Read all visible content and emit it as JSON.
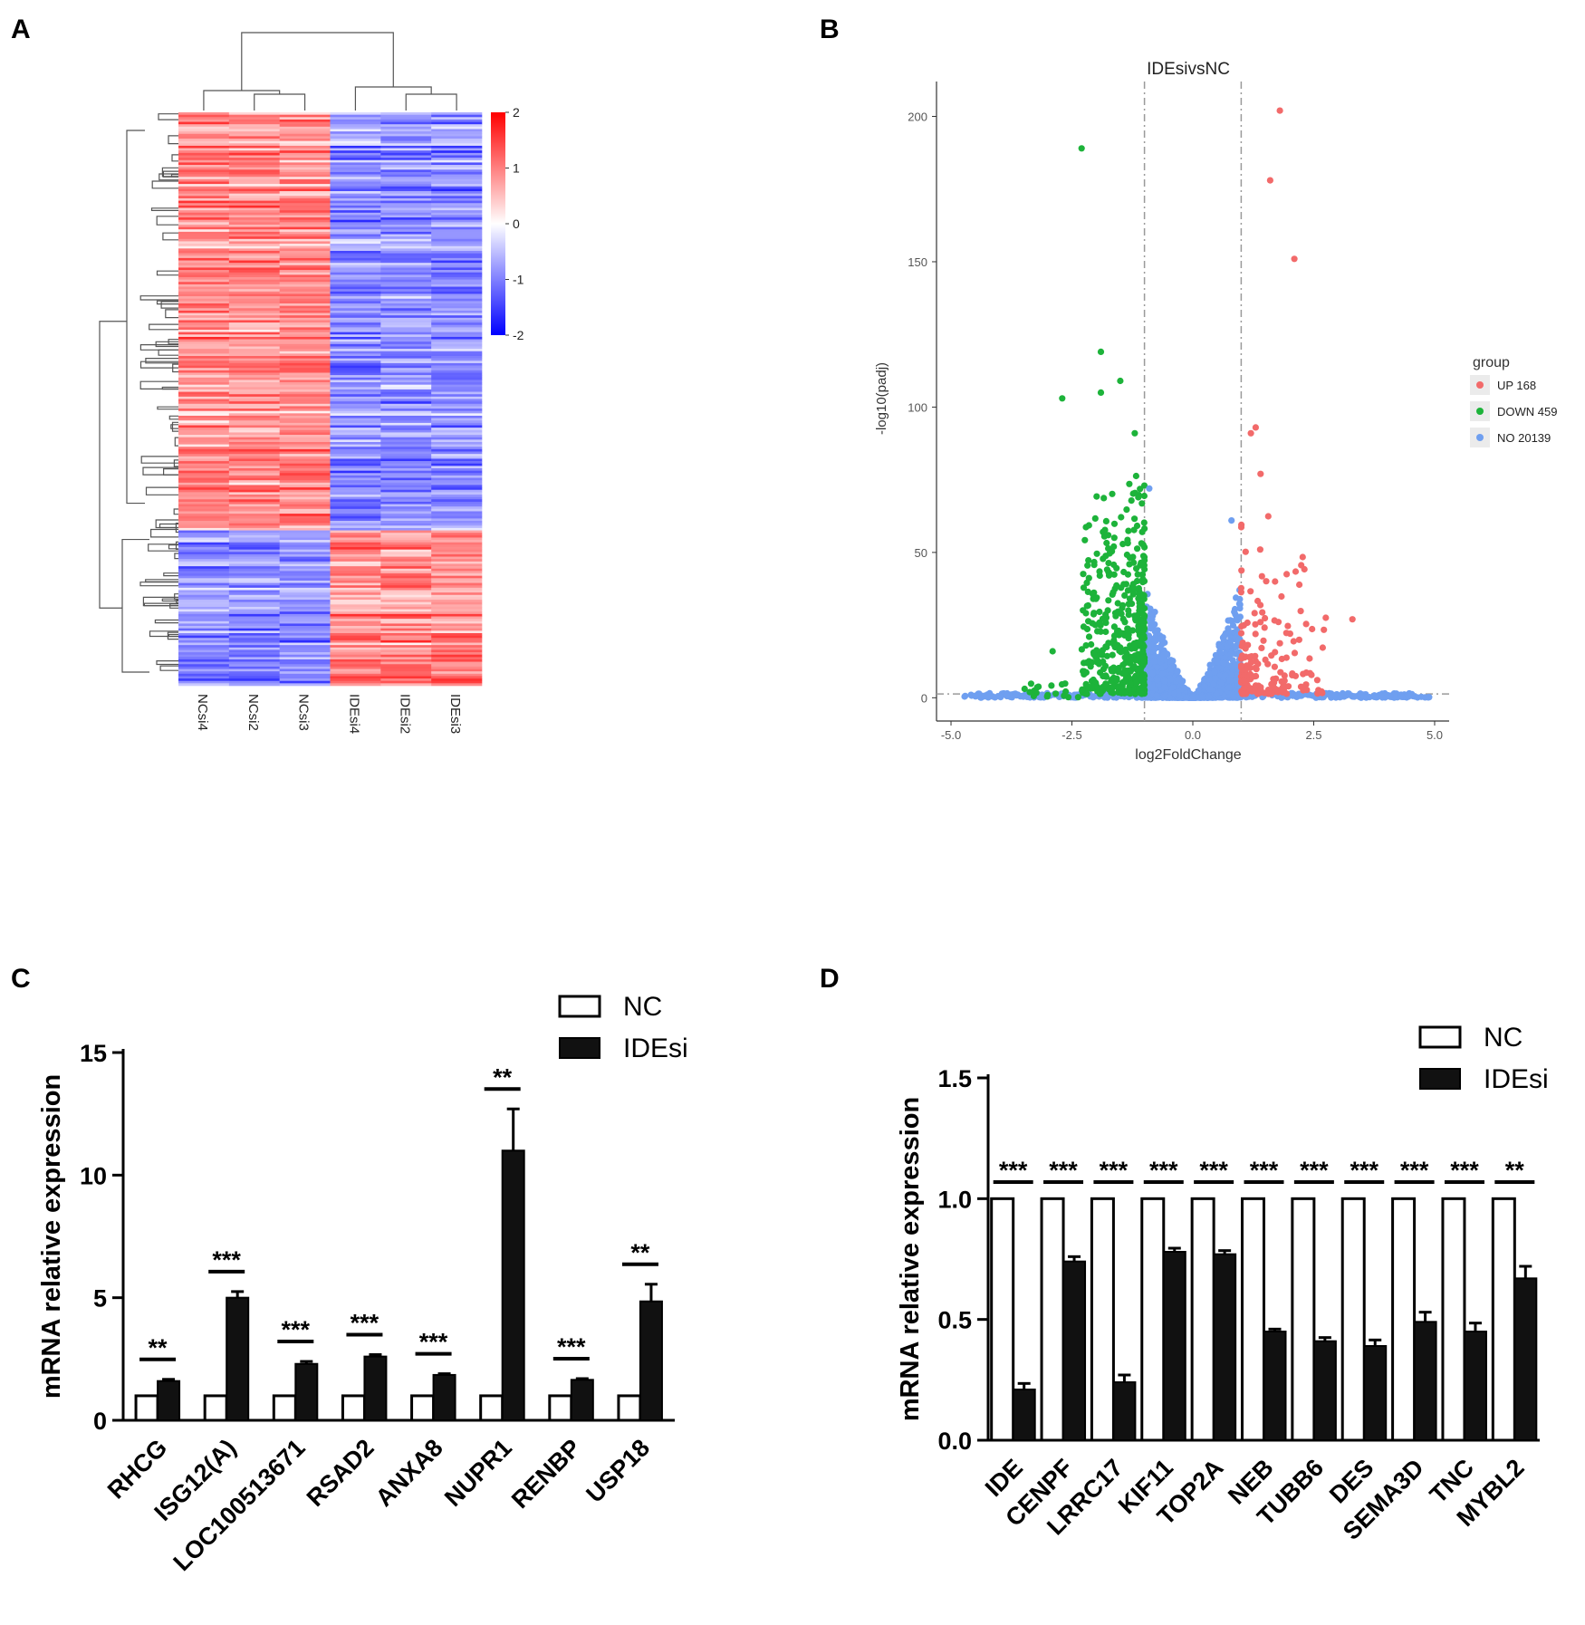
{
  "panels": [
    "A",
    "B",
    "C",
    "D"
  ],
  "colors": {
    "heat_high": "#ff0000",
    "heat_mid": "#ffffff",
    "heat_low": "#0000ff",
    "up": "#f26a6a",
    "down": "#1db33a",
    "no": "#6f9ff0",
    "bar_nc": "#ffffff",
    "bar_idesi": "#111111"
  },
  "heatmap": {
    "samples": [
      "NCsi4",
      "NCsi2",
      "NCsi3",
      "IDEsi4",
      "IDEsi2",
      "IDEsi3"
    ],
    "colorbar_ticks": [
      "2",
      "1",
      "0",
      "-1",
      "-2"
    ],
    "cluster_split_fraction": 0.73
  },
  "chart_data": [
    {
      "panel": "B",
      "type": "scatter",
      "title": "IDEsivsNC",
      "xlabel": "log2FoldChange",
      "ylabel": "-log10(padj)",
      "xlim": [
        -5.3,
        5.3
      ],
      "ylim": [
        -8,
        212
      ],
      "xticks": [
        -5.0,
        -2.5,
        0.0,
        2.5,
        5.0
      ],
      "xtick_labels": [
        "-5.0",
        "-2.5",
        "0.0",
        "2.5",
        "5.0"
      ],
      "yticks": [
        0,
        50,
        100,
        150,
        200
      ],
      "fold_change_threshold": [
        -1,
        1
      ],
      "padj_threshold_line": 1.3,
      "legend": {
        "title": "group",
        "entries": [
          {
            "label": "UP 168",
            "group": "up"
          },
          {
            "label": "DOWN 459",
            "group": "down"
          },
          {
            "label": "NO 20139",
            "group": "no"
          }
        ]
      },
      "highlight_points": [
        {
          "x": 1.8,
          "y": 202,
          "group": "up"
        },
        {
          "x": 1.6,
          "y": 178,
          "group": "up"
        },
        {
          "x": 2.1,
          "y": 151,
          "group": "up"
        },
        {
          "x": 3.3,
          "y": 27,
          "group": "up"
        },
        {
          "x": 1.3,
          "y": 93,
          "group": "up"
        },
        {
          "x": 1.2,
          "y": 91,
          "group": "up"
        },
        {
          "x": 1.4,
          "y": 77,
          "group": "up"
        },
        {
          "x": 1.7,
          "y": 40,
          "group": "up"
        },
        {
          "x": -2.3,
          "y": 189,
          "group": "down"
        },
        {
          "x": -2.7,
          "y": 103,
          "group": "down"
        },
        {
          "x": -1.9,
          "y": 119,
          "group": "down"
        },
        {
          "x": -1.5,
          "y": 109,
          "group": "down"
        },
        {
          "x": -1.2,
          "y": 91,
          "group": "down"
        },
        {
          "x": -1.9,
          "y": 105,
          "group": "down"
        },
        {
          "x": -2.9,
          "y": 16,
          "group": "down"
        },
        {
          "x": -0.9,
          "y": 72,
          "group": "no"
        },
        {
          "x": 0.8,
          "y": 61,
          "group": "no"
        }
      ]
    },
    {
      "panel": "C",
      "type": "bar",
      "ylabel": "mRNA relative expression",
      "ylim": [
        0,
        15
      ],
      "yticks": [
        0,
        5,
        10,
        15
      ],
      "categories": [
        "RHCG",
        "ISG12(A)",
        "LOC100513671",
        "RSAD2",
        "ANXA8",
        "NUPR1",
        "RENBP",
        "USP18"
      ],
      "series": [
        {
          "name": "NC",
          "values": [
            1,
            1,
            1,
            1,
            1,
            1,
            1,
            1
          ],
          "errors": [
            0,
            0,
            0,
            0,
            0,
            0,
            0,
            0
          ]
        },
        {
          "name": "IDEsi",
          "values": [
            1.6,
            5.0,
            2.3,
            2.6,
            1.85,
            11.0,
            1.65,
            4.85
          ],
          "errors": [
            0.07,
            0.25,
            0.1,
            0.08,
            0.05,
            1.7,
            0.05,
            0.7
          ]
        }
      ],
      "significance": [
        "**",
        "***",
        "***",
        "***",
        "***",
        "**",
        "***",
        "**"
      ]
    },
    {
      "panel": "D",
      "type": "bar",
      "ylabel": "mRNA relative expression",
      "ylim": [
        0,
        1.5
      ],
      "yticks": [
        0.0,
        0.5,
        1.0,
        1.5
      ],
      "ytick_labels": [
        "0.0",
        "0.5",
        "1.0",
        "1.5"
      ],
      "categories": [
        "IDE",
        "CENPF",
        "LRRC17",
        "KIF11",
        "TOP2A",
        "NEB",
        "TUBB6",
        "DES",
        "SEMA3D",
        "TNC",
        "MYBL2"
      ],
      "series": [
        {
          "name": "NC",
          "values": [
            1,
            1,
            1,
            1,
            1,
            1,
            1,
            1,
            1,
            1,
            1
          ],
          "errors": [
            0,
            0,
            0,
            0,
            0,
            0,
            0,
            0,
            0,
            0,
            0
          ]
        },
        {
          "name": "IDEsi",
          "values": [
            0.21,
            0.74,
            0.24,
            0.78,
            0.77,
            0.45,
            0.41,
            0.39,
            0.49,
            0.45,
            0.67
          ],
          "errors": [
            0.025,
            0.02,
            0.03,
            0.015,
            0.015,
            0.01,
            0.015,
            0.025,
            0.04,
            0.035,
            0.05
          ]
        }
      ],
      "significance": [
        "***",
        "***",
        "***",
        "***",
        "***",
        "***",
        "***",
        "***",
        "***",
        "***",
        "**"
      ]
    }
  ]
}
